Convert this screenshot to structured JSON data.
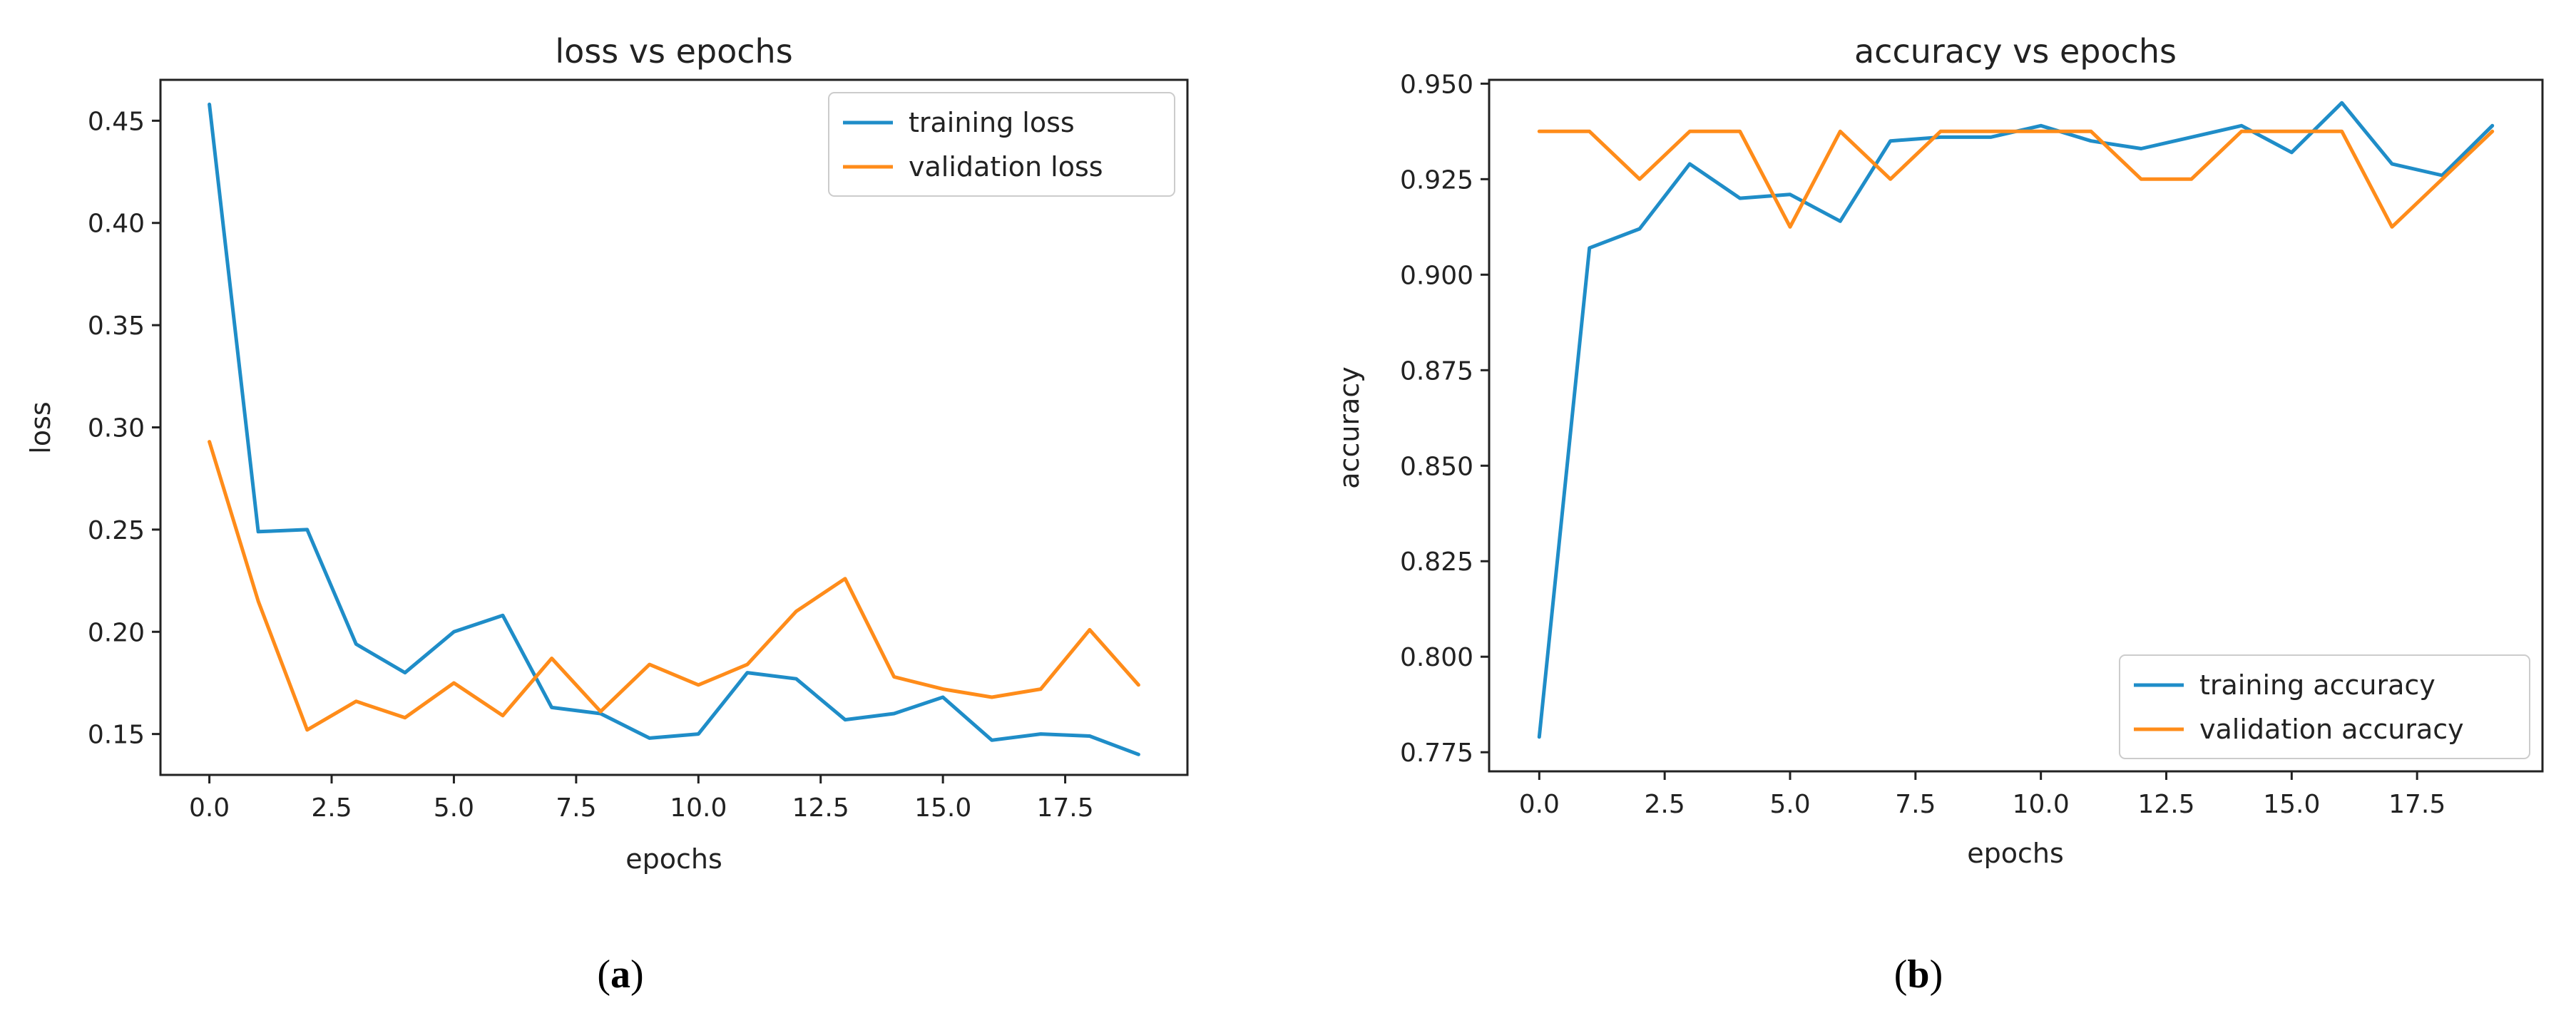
{
  "chart_data": [
    {
      "type": "line",
      "title": "loss vs epochs",
      "xlabel": "epochs",
      "ylabel": "loss",
      "xlim": [
        -1,
        20
      ],
      "ylim": [
        0.13,
        0.47
      ],
      "xticks": [
        0.0,
        2.5,
        5.0,
        7.5,
        10.0,
        12.5,
        15.0,
        17.5
      ],
      "xtick_labels": [
        "0.0",
        "2.5",
        "5.0",
        "7.5",
        "10.0",
        "12.5",
        "15.0",
        "17.5"
      ],
      "yticks": [
        0.15,
        0.2,
        0.25,
        0.3,
        0.35,
        0.4,
        0.45
      ],
      "ytick_labels": [
        "0.15",
        "0.20",
        "0.25",
        "0.30",
        "0.35",
        "0.40",
        "0.45"
      ],
      "legend_position": "top-right",
      "x": [
        0,
        1,
        2,
        3,
        4,
        5,
        6,
        7,
        8,
        9,
        10,
        11,
        12,
        13,
        14,
        15,
        16,
        17,
        18,
        19
      ],
      "series": [
        {
          "name": "training loss",
          "color": "#1f8dc8",
          "values": [
            0.458,
            0.249,
            0.25,
            0.194,
            0.18,
            0.2,
            0.208,
            0.163,
            0.16,
            0.148,
            0.15,
            0.18,
            0.177,
            0.157,
            0.16,
            0.168,
            0.147,
            0.15,
            0.149,
            0.14
          ]
        },
        {
          "name": "validation loss",
          "color": "#ff8c1a",
          "values": [
            0.293,
            0.215,
            0.152,
            0.166,
            0.158,
            0.175,
            0.159,
            0.187,
            0.161,
            0.184,
            0.174,
            0.184,
            0.21,
            0.226,
            0.178,
            0.172,
            0.168,
            0.172,
            0.201,
            0.174
          ]
        }
      ],
      "caption_letter": "a"
    },
    {
      "type": "line",
      "title": "accuracy vs epochs",
      "xlabel": "epochs",
      "ylabel": "accuracy",
      "xlim": [
        -1,
        20
      ],
      "ylim": [
        0.77,
        0.951
      ],
      "xticks": [
        0.0,
        2.5,
        5.0,
        7.5,
        10.0,
        12.5,
        15.0,
        17.5
      ],
      "xtick_labels": [
        "0.0",
        "2.5",
        "5.0",
        "7.5",
        "10.0",
        "12.5",
        "15.0",
        "17.5"
      ],
      "yticks": [
        0.775,
        0.8,
        0.825,
        0.85,
        0.875,
        0.9,
        0.925,
        0.95
      ],
      "ytick_labels": [
        "0.775",
        "0.800",
        "0.825",
        "0.850",
        "0.875",
        "0.900",
        "0.925",
        "0.950"
      ],
      "legend_position": "bottom-right",
      "x": [
        0,
        1,
        2,
        3,
        4,
        5,
        6,
        7,
        8,
        9,
        10,
        11,
        12,
        13,
        14,
        15,
        16,
        17,
        18,
        19
      ],
      "series": [
        {
          "name": "training accuracy",
          "color": "#1f8dc8",
          "values": [
            0.779,
            0.907,
            0.912,
            0.929,
            0.92,
            0.921,
            0.914,
            0.935,
            0.936,
            0.936,
            0.939,
            0.935,
            0.933,
            0.936,
            0.939,
            0.932,
            0.945,
            0.929,
            0.926,
            0.939
          ]
        },
        {
          "name": "validation accuracy",
          "color": "#ff8c1a",
          "values": [
            0.9375,
            0.9375,
            0.925,
            0.9375,
            0.9375,
            0.9125,
            0.9375,
            0.925,
            0.9375,
            0.9375,
            0.9375,
            0.9375,
            0.925,
            0.925,
            0.9375,
            0.9375,
            0.9375,
            0.9125,
            0.925,
            0.9375
          ]
        }
      ],
      "caption_letter": "b"
    }
  ]
}
